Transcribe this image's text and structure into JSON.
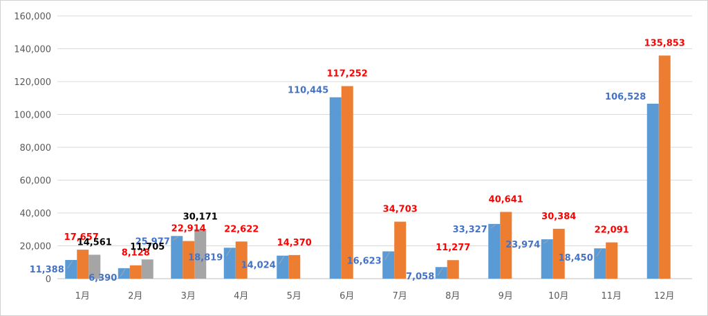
{
  "chart_data": {
    "type": "bar",
    "categories": [
      "1月",
      "2月",
      "3月",
      "4月",
      "5月",
      "6月",
      "7月",
      "8月",
      "9月",
      "10月",
      "11月",
      "12月"
    ],
    "series": [
      {
        "values": [
          11388,
          6390,
          25977,
          18819,
          14024,
          110445,
          16623,
          7058,
          33327,
          23974,
          18450,
          106528
        ]
      },
      {
        "values": [
          17657,
          8128,
          22914,
          22622,
          14370,
          117252,
          34703,
          11277,
          40641,
          30384,
          22091,
          135853
        ]
      },
      {
        "values": [
          14561,
          11705,
          30171,
          null,
          null,
          null,
          null,
          null,
          null,
          null,
          null,
          null
        ]
      }
    ],
    "data_labels": [
      [
        "11,388",
        "6,390",
        "25,977",
        "18,819",
        "14,024",
        "110,445",
        "16,623",
        "7,058",
        "33,327",
        "23,974",
        "18,450",
        "106,528"
      ],
      [
        "17,657",
        "8,128",
        "22,914",
        "22,622",
        "14,370",
        "117,252",
        "34,703",
        "11,277",
        "40,641",
        "30,384",
        "22,091",
        "135,853"
      ],
      [
        "14,561",
        "11,705",
        "30,171",
        "",
        "",
        "",
        "",
        "",
        "",
        "",
        "",
        ""
      ]
    ],
    "y_tick_labels": [
      "0",
      "20,000",
      "40,000",
      "60,000",
      "80,000",
      "100,000",
      "120,000",
      "140,000",
      "160,000"
    ],
    "ylim": [
      0,
      160000
    ],
    "grid": true,
    "colors": [
      "#5b9bd5",
      "#ed7d31",
      "#a5a5a5"
    ],
    "label_colors": [
      "#4472c4",
      "#ff0000",
      "#000000"
    ],
    "title": "",
    "xlabel": "",
    "ylabel": ""
  }
}
